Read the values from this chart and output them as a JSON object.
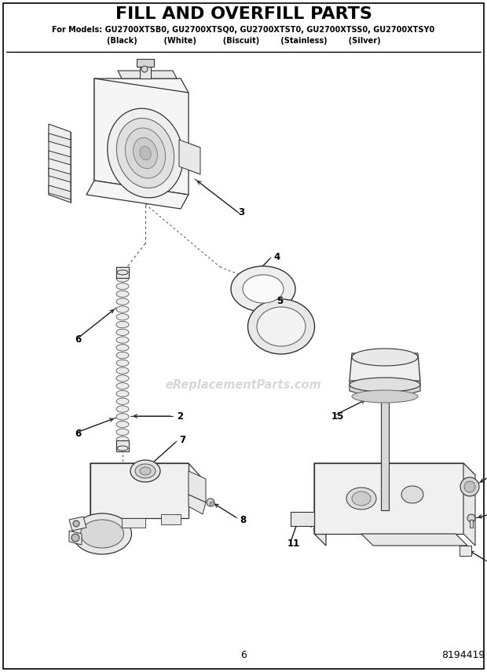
{
  "title": "FILL AND OVERFILL PARTS",
  "subtitle_line1": "For Models: GU2700XTSB0, GU2700XTSQ0, GU2700XTST0, GU2700XTSS0, GU2700XTSY0",
  "subtitle_line2": "(Black)          (White)          (Biscuit)        (Stainless)        (Silver)",
  "page_number": "6",
  "part_number": "8194419",
  "watermark": "eReplacementParts.com",
  "bg_color": "#ffffff",
  "border_color": "#000000",
  "text_color": "#000000",
  "figsize": [
    6.2,
    8.56
  ],
  "dpi": 100,
  "lc": "#333333",
  "lw": 0.8
}
